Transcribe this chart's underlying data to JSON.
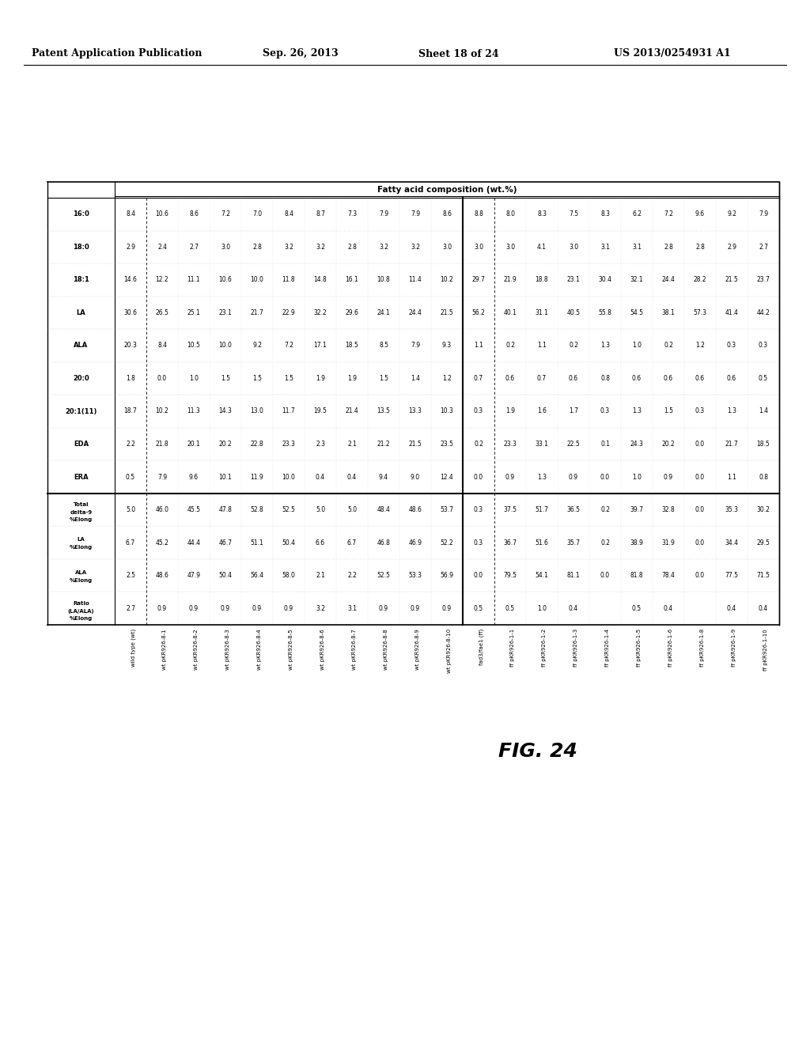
{
  "header_line1": "Patent Application Publication",
  "header_date": "Sep. 26, 2013",
  "header_sheet": "Sheet 18 of 24",
  "header_patent": "US 2013/0254931 A1",
  "figure_label": "FIG. 24",
  "table_title": "Fatty acid composition (wt.%)",
  "col_headers_rotated": [
    "16:0",
    "18:0",
    "18:1",
    "LA",
    "ALA",
    "20:0",
    "20:1(11)",
    "EDA",
    "ERA"
  ],
  "col_headers_right": [
    "Total\ndelta-9\n%Elong",
    "LA\n%Elong",
    "ALA\n%Elong",
    "Ratio\n(LA/ALA)\n%Elong"
  ],
  "row_labels": [
    "wild type (wt)",
    "wt pKR926-8-1",
    "wt pKR926-8-2",
    "wt pKR926-8-3",
    "wt pKR926-8-4",
    "wt pKR926-8-5",
    "wt pKR926-8-6",
    "wt pKR926-8-7",
    "wt pKR926-8-8",
    "wt pKR926-8-9",
    "wt pKR926-8-10",
    "fad3/fae1 (ff)",
    "ff pKR926-1-1",
    "ff pKR926-1-2",
    "ff pKR926-1-3",
    "ff pKR926-1-4",
    "ff pKR926-1-5",
    "ff pKR926-1-6",
    "ff pKR926-1-8",
    "ff pKR926-1-9",
    "ff pKR926-1-10"
  ],
  "data_fatty": [
    [
      "30.6",
      "20.3",
      "1.8",
      "18.7",
      "2.2",
      "0.5"
    ],
    [
      "26.5",
      "8.4",
      "0.0",
      "10.2",
      "21.8",
      "7.9"
    ],
    [
      "25.1",
      "10.5",
      "1.0",
      "11.3",
      "20.1",
      "9.6"
    ],
    [
      "23.1",
      "10.0",
      "1.5",
      "14.3",
      "20.2",
      "10.1"
    ],
    [
      "21.7",
      "9.2",
      "1.5",
      "13.0",
      "22.8",
      "11.9"
    ],
    [
      "22.9",
      "7.2",
      "1.5",
      "11.7",
      "23.3",
      "10.0"
    ],
    [
      "32.2",
      "17.1",
      "1.9",
      "19.5",
      "2.3",
      "0.4"
    ],
    [
      "29.6",
      "18.5",
      "1.9",
      "21.4",
      "2.1",
      "0.4"
    ],
    [
      "24.1",
      "8.5",
      "1.5",
      "13.5",
      "21.2",
      "9.4"
    ],
    [
      "24.4",
      "7.9",
      "1.4",
      "13.3",
      "21.5",
      "9.0"
    ],
    [
      "21.5",
      "9.3",
      "1.2",
      "10.3",
      "23.5",
      "12.4"
    ],
    [
      "56.2",
      "1.1",
      "0.7",
      "0.3",
      "0.2",
      "0.0"
    ],
    [
      "40.1",
      "0.2",
      "0.6",
      "1.9",
      "23.3",
      "0.9"
    ],
    [
      "31.1",
      "1.1",
      "0.7",
      "1.6",
      "33.1",
      "1.3"
    ],
    [
      "40.5",
      "0.2",
      "0.6",
      "1.7",
      "22.5",
      "0.9"
    ],
    [
      "55.8",
      "1.3",
      "0.8",
      "0.3",
      "0.1",
      "0.0"
    ],
    [
      "54.5",
      "1.0",
      "0.6",
      "1.3",
      "24.3",
      "1.0"
    ],
    [
      "38.1",
      "0.2",
      "0.6",
      "1.5",
      "20.2",
      "0.9"
    ],
    [
      "57.3",
      "1.2",
      "0.6",
      "0.3",
      "0.0",
      "0.0"
    ],
    [
      "41.4",
      "0.3",
      "0.6",
      "1.3",
      "21.7",
      "1.1"
    ],
    [
      "44.2",
      "0.3",
      "0.5",
      "1.4",
      "18.5",
      "0.8"
    ]
  ],
  "rows": [
    [
      "8.4",
      "2.9",
      "14.6",
      "30.6",
      "20.3",
      "1.8",
      "18.7",
      "2.2",
      "0.5",
      "5.0",
      "6.7",
      "2.5",
      "2.7"
    ],
    [
      "10.6",
      "2.4",
      "12.2",
      "26.5",
      "8.4",
      "0.0",
      "10.2",
      "21.8",
      "7.9",
      "46.0",
      "45.2",
      "48.6",
      "0.9"
    ],
    [
      "8.6",
      "2.7",
      "11.1",
      "25.1",
      "10.5",
      "1.0",
      "11.3",
      "20.1",
      "9.6",
      "45.5",
      "44.4",
      "47.9",
      "0.9"
    ],
    [
      "7.2",
      "3.0",
      "10.6",
      "23.1",
      "10.0",
      "1.5",
      "14.3",
      "20.2",
      "10.1",
      "47.8",
      "46.7",
      "50.4",
      "0.9"
    ],
    [
      "7.0",
      "2.8",
      "10.0",
      "21.7",
      "9.2",
      "1.5",
      "13.0",
      "22.8",
      "11.9",
      "52.8",
      "51.1",
      "56.4",
      "0.9"
    ],
    [
      "8.4",
      "3.2",
      "11.8",
      "22.9",
      "7.2",
      "1.5",
      "11.7",
      "23.3",
      "10.0",
      "52.5",
      "50.4",
      "58.0",
      "0.9"
    ],
    [
      "8.7",
      "3.2",
      "14.8",
      "32.2",
      "17.1",
      "1.9",
      "19.5",
      "2.3",
      "0.4",
      "5.0",
      "6.6",
      "2.1",
      "3.2"
    ],
    [
      "7.3",
      "2.8",
      "16.1",
      "29.6",
      "18.5",
      "1.9",
      "21.4",
      "2.1",
      "0.4",
      "5.0",
      "6.7",
      "2.2",
      "3.1"
    ],
    [
      "7.9",
      "3.2",
      "10.8",
      "24.1",
      "8.5",
      "1.5",
      "13.5",
      "21.2",
      "9.4",
      "48.4",
      "46.8",
      "52.5",
      "0.9"
    ],
    [
      "7.9",
      "3.2",
      "11.4",
      "24.4",
      "7.9",
      "1.4",
      "13.3",
      "21.5",
      "9.0",
      "48.6",
      "46.9",
      "53.3",
      "0.9"
    ],
    [
      "8.6",
      "3.0",
      "10.2",
      "21.5",
      "9.3",
      "1.2",
      "10.3",
      "23.5",
      "12.4",
      "53.7",
      "52.2",
      "56.9",
      "0.9"
    ],
    [
      "8.8",
      "3.0",
      "29.7",
      "56.2",
      "1.1",
      "0.7",
      "0.3",
      "0.2",
      "0.0",
      "0.3",
      "0.3",
      "0.0",
      "0.5"
    ],
    [
      "8.0",
      "3.0",
      "21.9",
      "40.1",
      "0.2",
      "0.6",
      "1.9",
      "23.3",
      "0.9",
      "37.5",
      "36.7",
      "79.5",
      "0.5"
    ],
    [
      "8.3",
      "4.1",
      "18.8",
      "31.1",
      "1.1",
      "0.7",
      "1.6",
      "33.1",
      "1.3",
      "51.7",
      "51.6",
      "54.1",
      "1.0"
    ],
    [
      "7.5",
      "3.0",
      "23.1",
      "40.5",
      "0.2",
      "0.6",
      "1.7",
      "22.5",
      "0.9",
      "36.5",
      "35.7",
      "81.1",
      "0.4"
    ],
    [
      "8.3",
      "3.1",
      "30.4",
      "55.8",
      "1.3",
      "0.8",
      "0.3",
      "0.1",
      "0.0",
      "0.2",
      "0.2",
      "0.0",
      ""
    ],
    [
      "6.2",
      "3.1",
      "32.1",
      "54.5",
      "1.0",
      "0.6",
      "1.3",
      "24.3",
      "1.0",
      "39.7",
      "38.9",
      "81.8",
      "0.5"
    ],
    [
      "7.2",
      "2.8",
      "24.4",
      "38.1",
      "0.2",
      "0.6",
      "1.5",
      "20.2",
      "0.9",
      "32.8",
      "31.9",
      "78.4",
      "0.4"
    ],
    [
      "9.6",
      "2.8",
      "28.2",
      "57.3",
      "1.2",
      "0.6",
      "0.3",
      "0.0",
      "0.0",
      "0.0",
      "0.0",
      "0.0",
      ""
    ],
    [
      "9.2",
      "2.9",
      "21.5",
      "41.4",
      "0.3",
      "0.6",
      "1.3",
      "21.7",
      "1.1",
      "35.3",
      "34.4",
      "77.5",
      "0.4"
    ],
    [
      "7.9",
      "2.7",
      "23.7",
      "44.2",
      "0.3",
      "0.5",
      "1.4",
      "18.5",
      "0.8",
      "30.2",
      "29.5",
      "71.5",
      "0.4"
    ]
  ],
  "background_color": "#ffffff"
}
